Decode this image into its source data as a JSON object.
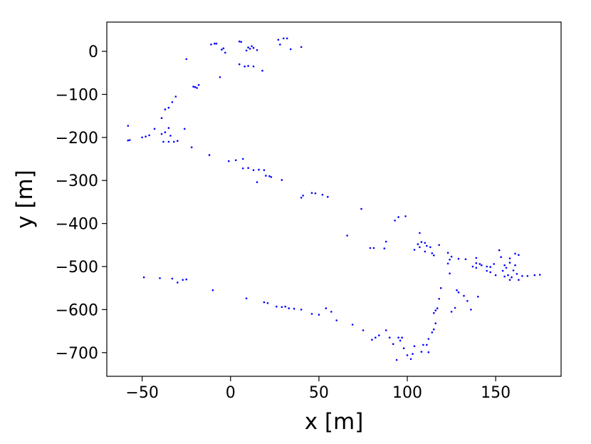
{
  "chart_data": {
    "type": "scatter",
    "title": "",
    "xlabel": "x [m]",
    "ylabel": "y [m]",
    "xlim": [
      -70,
      187
    ],
    "ylim": [
      -755,
      68
    ],
    "xticks": [
      -50,
      0,
      50,
      100,
      150
    ],
    "xtick_labels": [
      "−50",
      "0",
      "50",
      "100",
      "150"
    ],
    "yticks": [
      0,
      -100,
      -200,
      -300,
      -400,
      -500,
      -600,
      -700
    ],
    "ytick_labels": [
      "0",
      "−100",
      "−200",
      "−300",
      "−400",
      "−500",
      "−600",
      "−700"
    ],
    "grid": false,
    "marker_color": "#0000ff",
    "series": [
      {
        "points": [
          [
            -11,
            16
          ],
          [
            -9,
            18
          ],
          [
            -8,
            18
          ],
          [
            -5,
            4
          ],
          [
            -4,
            7
          ],
          [
            -3,
            -3
          ],
          [
            5,
            23
          ],
          [
            6,
            22
          ],
          [
            9,
            2
          ],
          [
            10,
            9
          ],
          [
            11,
            6
          ],
          [
            12,
            12
          ],
          [
            13,
            8
          ],
          [
            15,
            3
          ],
          [
            27,
            27
          ],
          [
            28,
            16
          ],
          [
            30,
            30
          ],
          [
            32,
            30
          ],
          [
            34,
            5
          ],
          [
            40,
            10
          ],
          [
            5,
            -30
          ],
          [
            8,
            -35
          ],
          [
            10,
            -34
          ],
          [
            13,
            -35
          ],
          [
            18,
            -45
          ],
          [
            -25,
            -18
          ],
          [
            -6,
            -60
          ],
          [
            -21,
            -82
          ],
          [
            -19,
            -85
          ],
          [
            -20,
            -83
          ],
          [
            -18,
            -78
          ],
          [
            -31,
            -105
          ],
          [
            -33,
            -118
          ],
          [
            -35,
            -131
          ],
          [
            -37,
            -135
          ],
          [
            -39,
            -155
          ],
          [
            -35,
            -178
          ],
          [
            -37,
            -188
          ],
          [
            -39,
            -192
          ],
          [
            -43,
            -180
          ],
          [
            -26,
            -180
          ],
          [
            -34,
            -196
          ],
          [
            -38,
            -210
          ],
          [
            -35,
            -210
          ],
          [
            -32,
            -210
          ],
          [
            -30,
            -208
          ],
          [
            -22,
            -223
          ],
          [
            -58,
            -173
          ],
          [
            -58,
            -207
          ],
          [
            -57,
            -206
          ],
          [
            -50,
            -200
          ],
          [
            -48,
            -198
          ],
          [
            -46,
            -195
          ],
          [
            -12,
            -241
          ],
          [
            -1,
            -255
          ],
          [
            3,
            -253
          ],
          [
            7,
            -250
          ],
          [
            10,
            -271
          ],
          [
            7,
            -272
          ],
          [
            13,
            -276
          ],
          [
            16,
            -275
          ],
          [
            15,
            -304
          ],
          [
            19,
            -276
          ],
          [
            20,
            -289
          ],
          [
            22,
            -290
          ],
          [
            23,
            -292
          ],
          [
            29,
            -299
          ],
          [
            40,
            -340
          ],
          [
            41,
            -335
          ],
          [
            46,
            -329
          ],
          [
            48,
            -330
          ],
          [
            52,
            -333
          ],
          [
            55,
            -338
          ],
          [
            74,
            -366
          ],
          [
            93,
            -393
          ],
          [
            95,
            -385
          ],
          [
            99,
            -383
          ],
          [
            66,
            -428
          ],
          [
            79,
            -457
          ],
          [
            81,
            -457
          ],
          [
            87,
            -458
          ],
          [
            88,
            -442
          ],
          [
            104,
            -461
          ],
          [
            106,
            -448
          ],
          [
            107,
            -422
          ],
          [
            108,
            -443
          ],
          [
            107,
            -455
          ],
          [
            110,
            -445
          ],
          [
            111,
            -452
          ],
          [
            113,
            -455
          ],
          [
            118,
            -450
          ],
          [
            110,
            -465
          ],
          [
            114,
            -469
          ],
          [
            115,
            -474
          ],
          [
            123,
            -468
          ],
          [
            125,
            -477
          ],
          [
            123,
            -493
          ],
          [
            124,
            -484
          ],
          [
            124,
            -516
          ],
          [
            129,
            -482
          ],
          [
            133,
            -483
          ],
          [
            137,
            -500
          ],
          [
            139,
            -480
          ],
          [
            139,
            -492
          ],
          [
            139,
            -503
          ],
          [
            141,
            -494
          ],
          [
            142,
            -497
          ],
          [
            145,
            -510
          ],
          [
            145,
            -500
          ],
          [
            147,
            -501
          ],
          [
            149,
            -494
          ],
          [
            147,
            -513
          ],
          [
            150,
            -520
          ],
          [
            152,
            -462
          ],
          [
            153,
            -478
          ],
          [
            154,
            -510
          ],
          [
            155,
            -497
          ],
          [
            156,
            -503
          ],
          [
            158,
            -481
          ],
          [
            158,
            -491
          ],
          [
            160,
            -509
          ],
          [
            161,
            -470
          ],
          [
            161,
            -497
          ],
          [
            163,
            -473
          ],
          [
            163,
            -531
          ],
          [
            165,
            -522
          ],
          [
            168,
            -522
          ],
          [
            172,
            -520
          ],
          [
            175,
            -519
          ],
          [
            155,
            -523
          ],
          [
            157,
            -520
          ],
          [
            158,
            -531
          ],
          [
            159,
            -525
          ],
          [
            162,
            -517
          ],
          [
            128,
            -555
          ],
          [
            129,
            -560
          ],
          [
            132,
            -568
          ],
          [
            134,
            -580
          ],
          [
            136,
            -600
          ],
          [
            140,
            -570
          ],
          [
            127,
            -596
          ],
          [
            125,
            -605
          ],
          [
            119,
            -550
          ],
          [
            118,
            -575
          ],
          [
            117,
            -597
          ],
          [
            116,
            -602
          ],
          [
            115,
            -608
          ],
          [
            116,
            -632
          ],
          [
            115,
            -646
          ],
          [
            114,
            -653
          ],
          [
            112,
            -668
          ],
          [
            111,
            -682
          ],
          [
            112,
            -699
          ],
          [
            109,
            -682
          ],
          [
            108,
            -698
          ],
          [
            104,
            -685
          ],
          [
            103,
            -703
          ],
          [
            102,
            -715
          ],
          [
            100,
            -706
          ],
          [
            98,
            -690
          ],
          [
            97,
            -665
          ],
          [
            96,
            -672
          ],
          [
            95,
            -665
          ],
          [
            94,
            -717
          ],
          [
            92,
            -680
          ],
          [
            90,
            -665
          ],
          [
            88,
            -648
          ],
          [
            84,
            -660
          ],
          [
            82,
            -665
          ],
          [
            80,
            -670
          ],
          [
            75,
            -648
          ],
          [
            69,
            -635
          ],
          [
            60,
            -625
          ],
          [
            57,
            -605
          ],
          [
            54,
            -597
          ],
          [
            50,
            -612
          ],
          [
            46,
            -610
          ],
          [
            40,
            -600
          ],
          [
            36,
            -598
          ],
          [
            33,
            -597
          ],
          [
            31,
            -593
          ],
          [
            29,
            -594
          ],
          [
            26,
            -593
          ],
          [
            21,
            -585
          ],
          [
            19,
            -583
          ],
          [
            9,
            -574
          ],
          [
            -10,
            -555
          ],
          [
            -25,
            -530
          ],
          [
            -27,
            -531
          ],
          [
            -30,
            -537
          ],
          [
            -33,
            -528
          ],
          [
            -40,
            -527
          ],
          [
            -49,
            -525
          ]
        ]
      }
    ]
  }
}
